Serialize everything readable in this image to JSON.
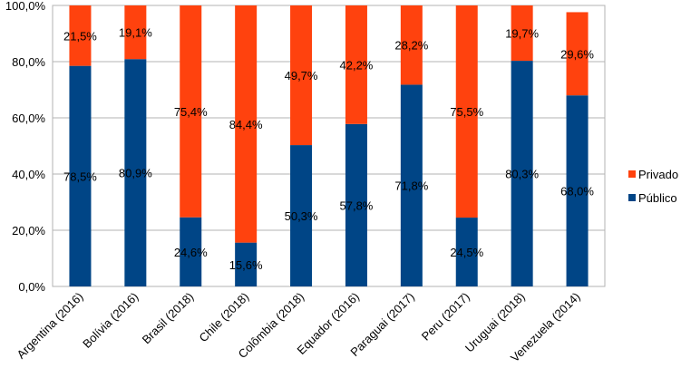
{
  "chart_data": {
    "type": "bar",
    "stacked": true,
    "title": "",
    "xlabel": "",
    "ylabel": "",
    "ylim": [
      0,
      100
    ],
    "y_ticks": [
      "0,0%",
      "20,0%",
      "40,0%",
      "60,0%",
      "80,0%",
      "100,0%"
    ],
    "grid": true,
    "legend_position": "right",
    "categories": [
      "Argentina (2016)",
      "Bolívia (2016)",
      "Brasil (2018)",
      "Chile (2018)",
      "Colômbia (2018)",
      "Equador (2016)",
      "Paraguai (2017)",
      "Peru (2017)",
      "Uruguai (2018)",
      "Venezuela (2014)"
    ],
    "series": [
      {
        "name": "Público",
        "color": "#004586",
        "values": [
          78.5,
          80.9,
          24.6,
          15.6,
          50.3,
          57.8,
          71.8,
          24.5,
          80.3,
          68.0
        ],
        "labels": [
          "78,5%",
          "80,9%",
          "24,6%",
          "15,6%",
          "50,3%",
          "57,8%",
          "71,8%",
          "24,5%",
          "80,3%",
          "68,0%"
        ]
      },
      {
        "name": "Privado",
        "color": "#ff420e",
        "values": [
          21.5,
          19.1,
          75.4,
          84.4,
          49.7,
          42.2,
          28.2,
          75.5,
          19.7,
          29.6
        ],
        "labels": [
          "21,5%",
          "19,1%",
          "75,4%",
          "84,4%",
          "49,7%",
          "42,2%",
          "28,2%",
          "75,5%",
          "19,7%",
          "29,6%"
        ]
      }
    ],
    "legend_order": [
      "Privado",
      "Público"
    ]
  }
}
